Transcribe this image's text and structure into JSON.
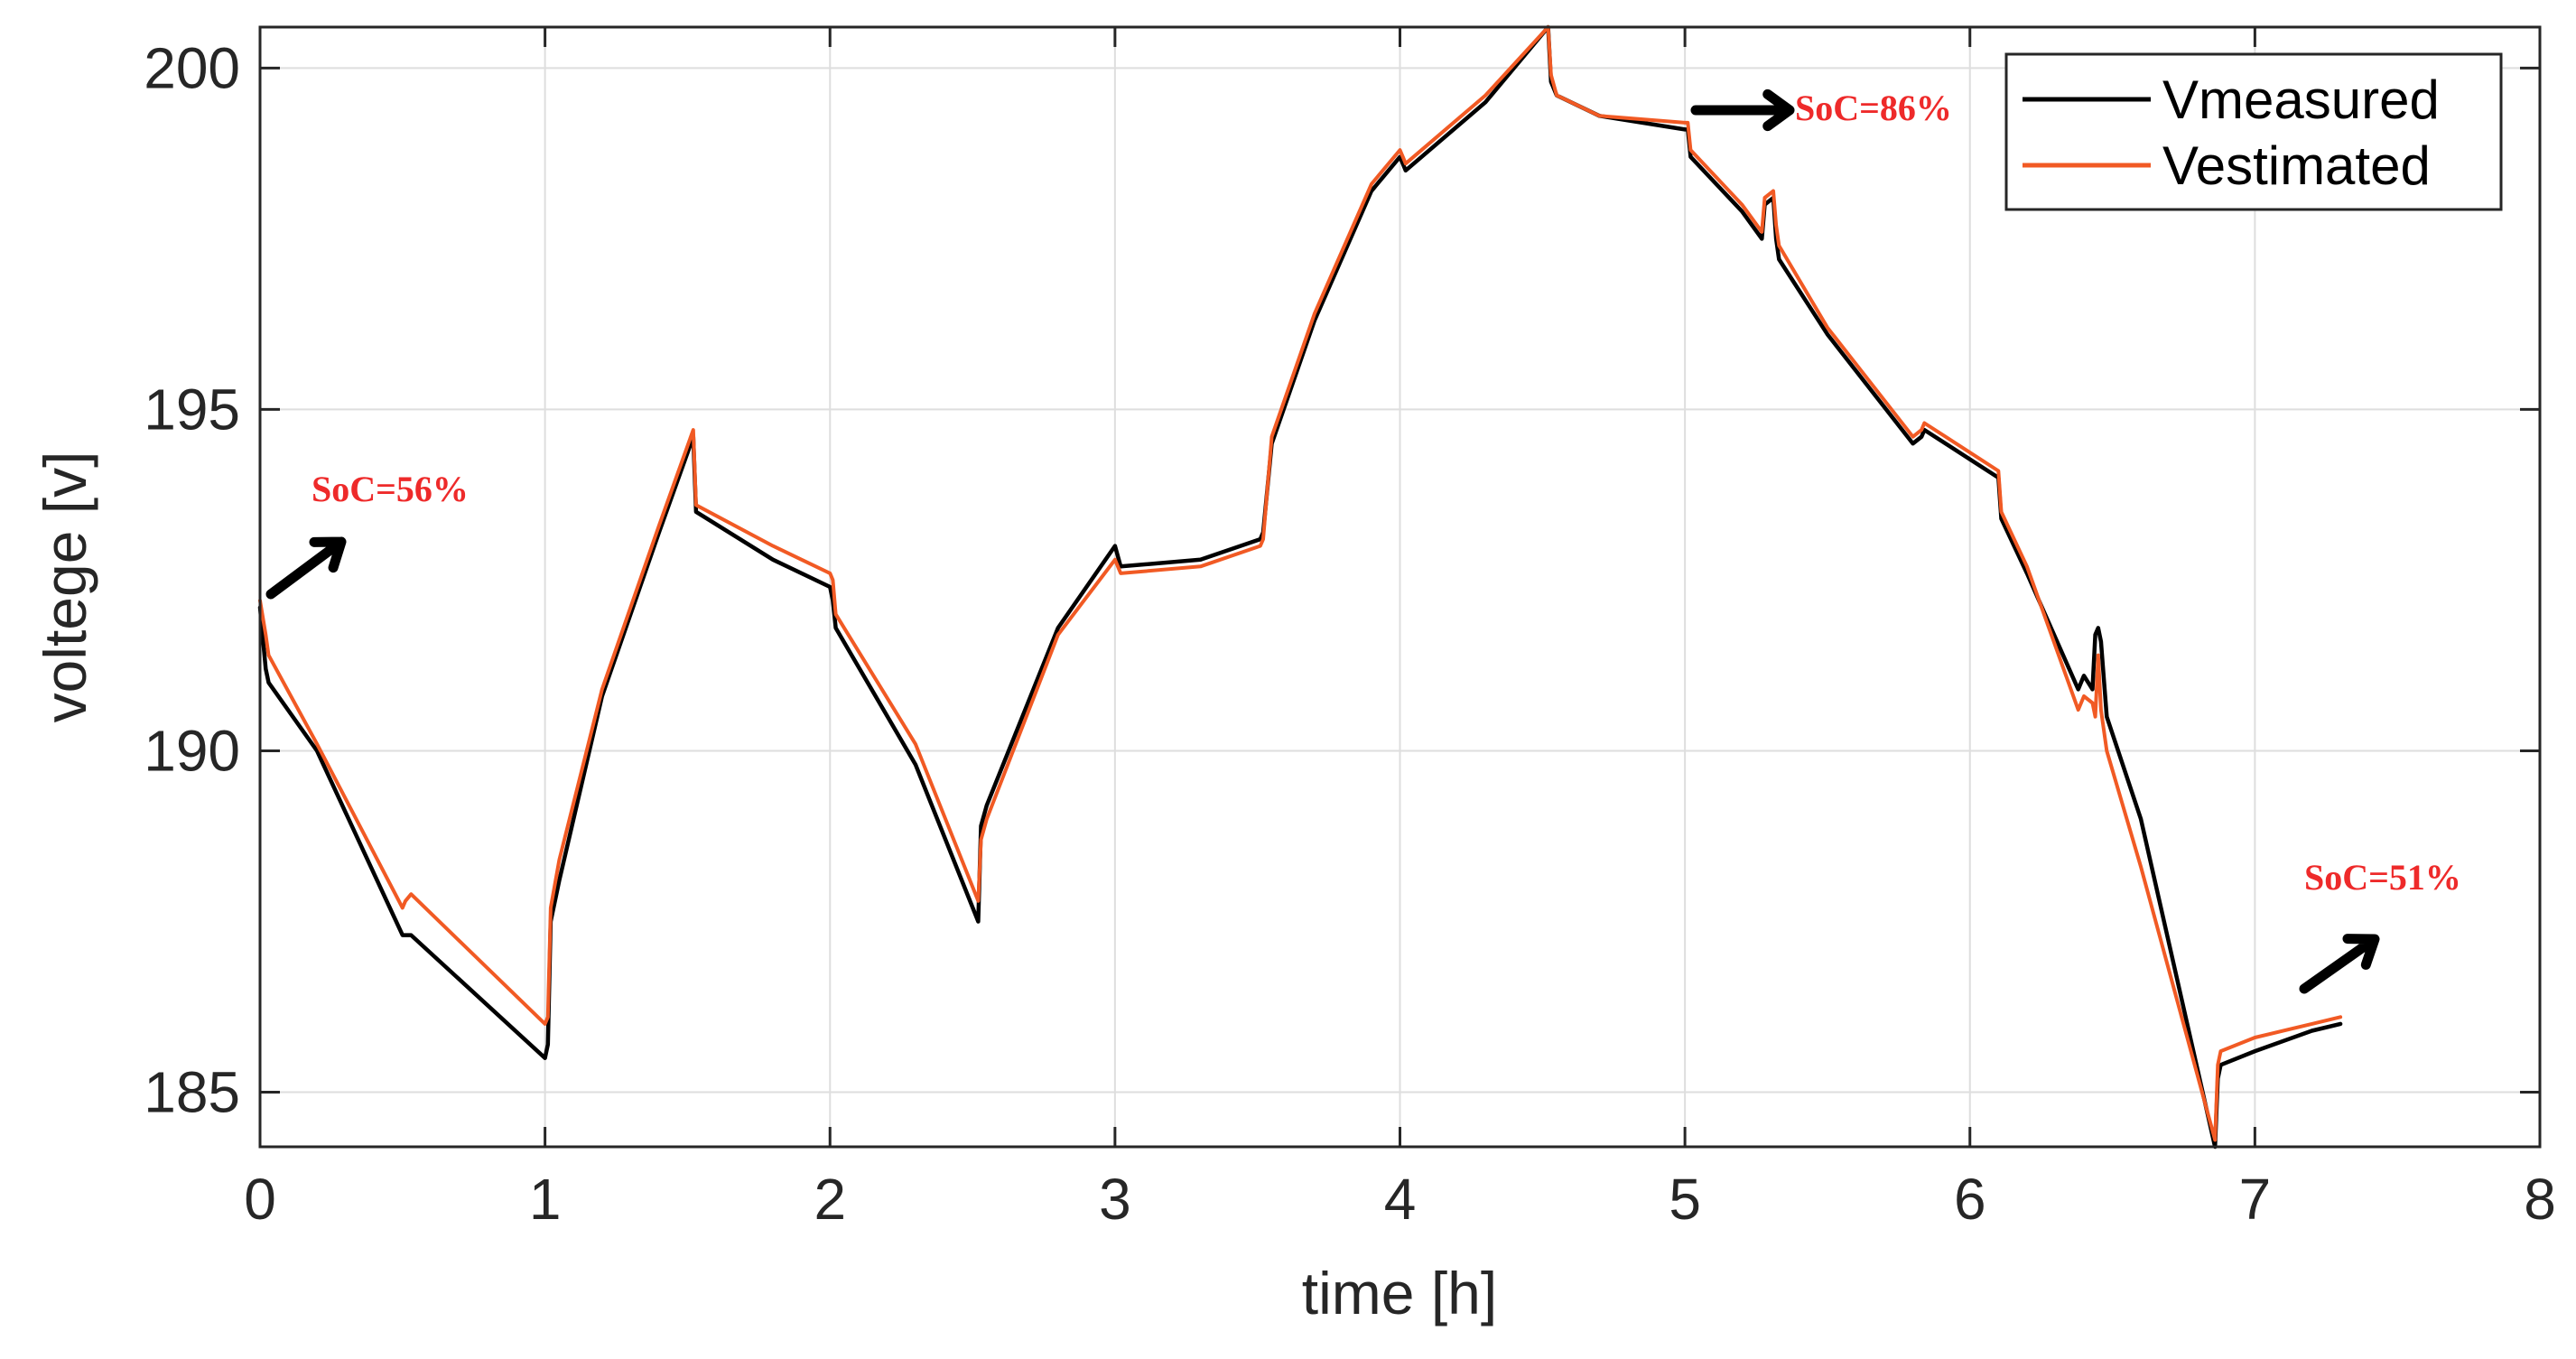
{
  "chart_data": {
    "type": "line",
    "title": "",
    "xlabel": "time [h]",
    "ylabel": "voltege [v]",
    "xlim": [
      0,
      8
    ],
    "ylim": [
      184.2,
      200.6
    ],
    "xticks": [
      0,
      1,
      2,
      3,
      4,
      5,
      6,
      7,
      8
    ],
    "yticks": [
      185,
      190,
      195,
      200
    ],
    "grid": true,
    "legend_position": "top-right",
    "series": [
      {
        "name": "Vmeasured",
        "color": "#000000",
        "x": [
          0,
          0.02,
          0.03,
          0.2,
          0.5,
          0.51,
          0.53,
          1.0,
          1.01,
          1.02,
          1.05,
          1.2,
          1.4,
          1.52,
          1.53,
          1.8,
          2.0,
          2.01,
          2.02,
          2.3,
          2.52,
          2.53,
          2.55,
          2.8,
          3.0,
          3.02,
          3.3,
          3.51,
          3.52,
          3.55,
          3.7,
          3.9,
          4.0,
          4.01,
          4.02,
          4.3,
          4.52,
          4.53,
          4.55,
          4.7,
          5.0,
          5.01,
          5.02,
          5.2,
          5.27,
          5.28,
          5.31,
          5.32,
          5.33,
          5.5,
          5.8,
          5.83,
          5.84,
          6.1,
          6.11,
          6.2,
          6.38,
          6.4,
          6.43,
          6.44,
          6.45,
          6.46,
          6.48,
          6.6,
          6.86,
          6.87,
          6.88,
          7.0,
          7.2,
          7.3
        ],
        "y": [
          192.1,
          191.2,
          191.0,
          190.0,
          187.3,
          187.3,
          187.3,
          185.5,
          185.7,
          187.5,
          188.1,
          190.8,
          193.2,
          194.6,
          193.5,
          192.8,
          192.4,
          192.2,
          191.8,
          189.8,
          187.5,
          188.9,
          189.2,
          191.8,
          193.0,
          192.7,
          192.8,
          193.1,
          193.2,
          194.5,
          196.3,
          198.2,
          198.7,
          198.6,
          198.5,
          199.5,
          200.6,
          199.8,
          199.6,
          199.3,
          199.1,
          199.1,
          198.7,
          197.9,
          197.5,
          198.0,
          198.1,
          197.5,
          197.2,
          196.1,
          194.5,
          194.6,
          194.7,
          194.0,
          193.4,
          192.6,
          190.9,
          191.1,
          190.9,
          191.7,
          191.8,
          191.6,
          190.5,
          189.0,
          184.2,
          185.2,
          185.4,
          185.6,
          185.9,
          186.0
        ]
      },
      {
        "name": "Vestimated",
        "color": "#f15a24",
        "x": [
          0,
          0.02,
          0.03,
          0.2,
          0.5,
          0.51,
          0.53,
          1.0,
          1.01,
          1.02,
          1.05,
          1.2,
          1.4,
          1.52,
          1.53,
          1.8,
          2.0,
          2.01,
          2.02,
          2.3,
          2.52,
          2.53,
          2.55,
          2.8,
          3.0,
          3.02,
          3.3,
          3.51,
          3.52,
          3.55,
          3.7,
          3.9,
          4.0,
          4.01,
          4.02,
          4.3,
          4.52,
          4.53,
          4.55,
          4.7,
          5.0,
          5.01,
          5.02,
          5.2,
          5.27,
          5.28,
          5.31,
          5.32,
          5.33,
          5.5,
          5.8,
          5.83,
          5.84,
          6.1,
          6.11,
          6.2,
          6.38,
          6.4,
          6.43,
          6.44,
          6.45,
          6.46,
          6.48,
          6.6,
          6.86,
          6.87,
          6.88,
          7.0,
          7.2,
          7.3
        ],
        "y": [
          192.2,
          191.7,
          191.4,
          190.1,
          187.7,
          187.8,
          187.9,
          186.0,
          186.1,
          187.7,
          188.4,
          190.9,
          193.3,
          194.7,
          193.6,
          193.0,
          192.6,
          192.5,
          192.0,
          190.1,
          187.8,
          188.7,
          189.0,
          191.7,
          192.8,
          192.6,
          192.7,
          193.0,
          193.1,
          194.6,
          196.4,
          198.3,
          198.8,
          198.7,
          198.6,
          199.6,
          200.6,
          199.9,
          199.6,
          199.3,
          199.2,
          199.2,
          198.8,
          198.0,
          197.6,
          198.1,
          198.2,
          197.7,
          197.4,
          196.2,
          194.6,
          194.7,
          194.8,
          194.1,
          193.5,
          192.7,
          190.6,
          190.8,
          190.7,
          190.5,
          191.4,
          190.6,
          190.0,
          188.3,
          184.3,
          185.4,
          185.6,
          185.8,
          186.0,
          186.1
        ]
      }
    ],
    "annotations": [
      {
        "text": "SoC=56%"
      },
      {
        "text": "SoC=86%"
      },
      {
        "text": "SoC=51%"
      }
    ]
  }
}
